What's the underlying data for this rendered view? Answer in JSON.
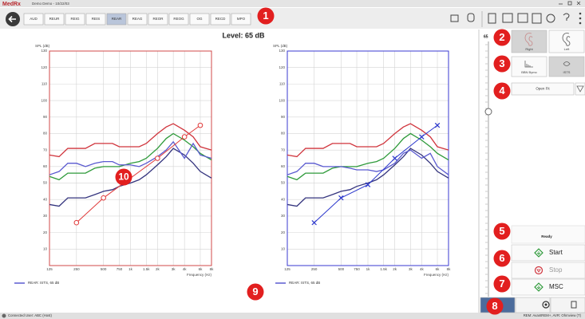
{
  "titlebar": {
    "logo": "MedRx",
    "title": "Demo Demo - 10/22/03"
  },
  "toolbar": {
    "tabs": [
      "AUD",
      "REUR",
      "REIG",
      "REIS",
      "REAR",
      "REAG",
      "REOR",
      "REOG",
      "OG",
      "RECD",
      "MPO"
    ],
    "selected": "REAR"
  },
  "level": "Level: 65 dB",
  "charts": [
    {
      "ylabel": "SPL (dB)",
      "xlabel": "Frequency (Hz)",
      "border_color": "#d04848",
      "ylim": [
        0,
        130
      ],
      "yticks": [
        10,
        20,
        30,
        40,
        50,
        60,
        70,
        80,
        90,
        100,
        110,
        120,
        130
      ],
      "xlim": [
        125,
        8000
      ],
      "xscale": "log",
      "xticks": [
        125,
        250,
        500,
        750,
        {
          "value": 1000,
          "label": "1k"
        },
        {
          "value": 1500,
          "label": "1.5k"
        },
        {
          "value": 2000,
          "label": "2k"
        },
        {
          "value": 3000,
          "label": "3k"
        },
        {
          "value": 4000,
          "label": "4k"
        },
        {
          "value": 6000,
          "label": "6k"
        },
        {
          "value": 8000,
          "label": "8k"
        }
      ],
      "x": [
        125,
        160,
        200,
        250,
        315,
        400,
        500,
        630,
        750,
        1000,
        1250,
        1500,
        2000,
        2500,
        3000,
        4000,
        5000,
        6000,
        8000
      ],
      "series": [
        {
          "color": "#d0343c",
          "values": [
            67,
            66,
            71,
            71,
            71,
            74,
            74,
            74,
            72,
            72,
            72,
            74,
            80,
            84,
            86,
            82,
            78,
            72,
            70
          ]
        },
        {
          "color": "#2e9a3a",
          "values": [
            54,
            52,
            56,
            56,
            56,
            59,
            60,
            60,
            60,
            62,
            63,
            65,
            71,
            77,
            80,
            76,
            72,
            68,
            64
          ]
        },
        {
          "color": "#34347e",
          "values": [
            37,
            36,
            41,
            41,
            41,
            43,
            45,
            46,
            48,
            50,
            52,
            55,
            61,
            66,
            71,
            67,
            62,
            57,
            53
          ]
        },
        {
          "name": "REAR: ISTS, 65 dB",
          "color": "#5a5ad0",
          "values": [
            55,
            57,
            62,
            62,
            60,
            62,
            63,
            63,
            61,
            61,
            60,
            62,
            66,
            70,
            75,
            65,
            74,
            67,
            65
          ]
        }
      ],
      "target": {
        "color": "#e03a3a",
        "marker": "circle",
        "x": [
          250,
          500,
          2000,
          4000,
          6000
        ],
        "values": [
          26,
          41,
          65,
          78,
          85
        ]
      }
    },
    {
      "ylabel": "SPL (dB)",
      "xlabel": "Frequency (Hz)",
      "border_color": "#3a3ad0",
      "ylim": [
        0,
        130
      ],
      "yticks": [
        10,
        20,
        30,
        40,
        50,
        60,
        70,
        80,
        90,
        100,
        110,
        120,
        130
      ],
      "xlim": [
        125,
        8000
      ],
      "xscale": "log",
      "xticks": [
        125,
        250,
        500,
        750,
        {
          "value": 1000,
          "label": "1k"
        },
        {
          "value": 1500,
          "label": "1.5k"
        },
        {
          "value": 2000,
          "label": "2k"
        },
        {
          "value": 3000,
          "label": "3k"
        },
        {
          "value": 4000,
          "label": "4k"
        },
        {
          "value": 6000,
          "label": "6k"
        },
        {
          "value": 8000,
          "label": "8k"
        }
      ],
      "x": [
        125,
        160,
        200,
        250,
        315,
        400,
        500,
        630,
        750,
        1000,
        1250,
        1500,
        2000,
        2500,
        3000,
        4000,
        5000,
        6000,
        8000
      ],
      "series": [
        {
          "color": "#d0343c",
          "values": [
            67,
            66,
            71,
            71,
            71,
            74,
            74,
            74,
            72,
            72,
            72,
            74,
            80,
            84,
            86,
            82,
            78,
            72,
            70
          ]
        },
        {
          "color": "#2e9a3a",
          "values": [
            54,
            52,
            56,
            56,
            56,
            59,
            60,
            60,
            60,
            62,
            63,
            65,
            71,
            77,
            80,
            76,
            72,
            68,
            64
          ]
        },
        {
          "color": "#34347e",
          "values": [
            37,
            36,
            41,
            41,
            41,
            43,
            45,
            46,
            48,
            50,
            52,
            55,
            61,
            66,
            71,
            67,
            62,
            57,
            53
          ]
        },
        {
          "name": "REAR: ISTS, 65 dB",
          "color": "#5a5ad0",
          "values": [
            55,
            57,
            62,
            62,
            60,
            60,
            60,
            59,
            58,
            58,
            57,
            58,
            62,
            68,
            70,
            65,
            68,
            60,
            55
          ]
        }
      ],
      "target": {
        "color": "#2a36cc",
        "marker": "x",
        "x": [
          250,
          500,
          1000,
          2000,
          4000,
          6000
        ],
        "values": [
          26,
          41,
          49,
          65,
          78,
          85
        ]
      }
    }
  ],
  "sidebar": {
    "slider_value": "65",
    "ear_buttons": [
      "Right",
      "Left"
    ],
    "signal_buttons": [
      "BBN Bymo",
      "ISTS"
    ],
    "fitting": "Open Fit",
    "status": "Ready",
    "actions": [
      "Start",
      "Stop",
      "MSC"
    ]
  },
  "callouts": [
    1,
    2,
    3,
    4,
    5,
    6,
    7,
    8,
    9,
    10
  ],
  "statusbar": {
    "left": "Connected  User: ABC (Host)",
    "right": "REM: AvantREM+, AVR: Ohmview (T)"
  }
}
